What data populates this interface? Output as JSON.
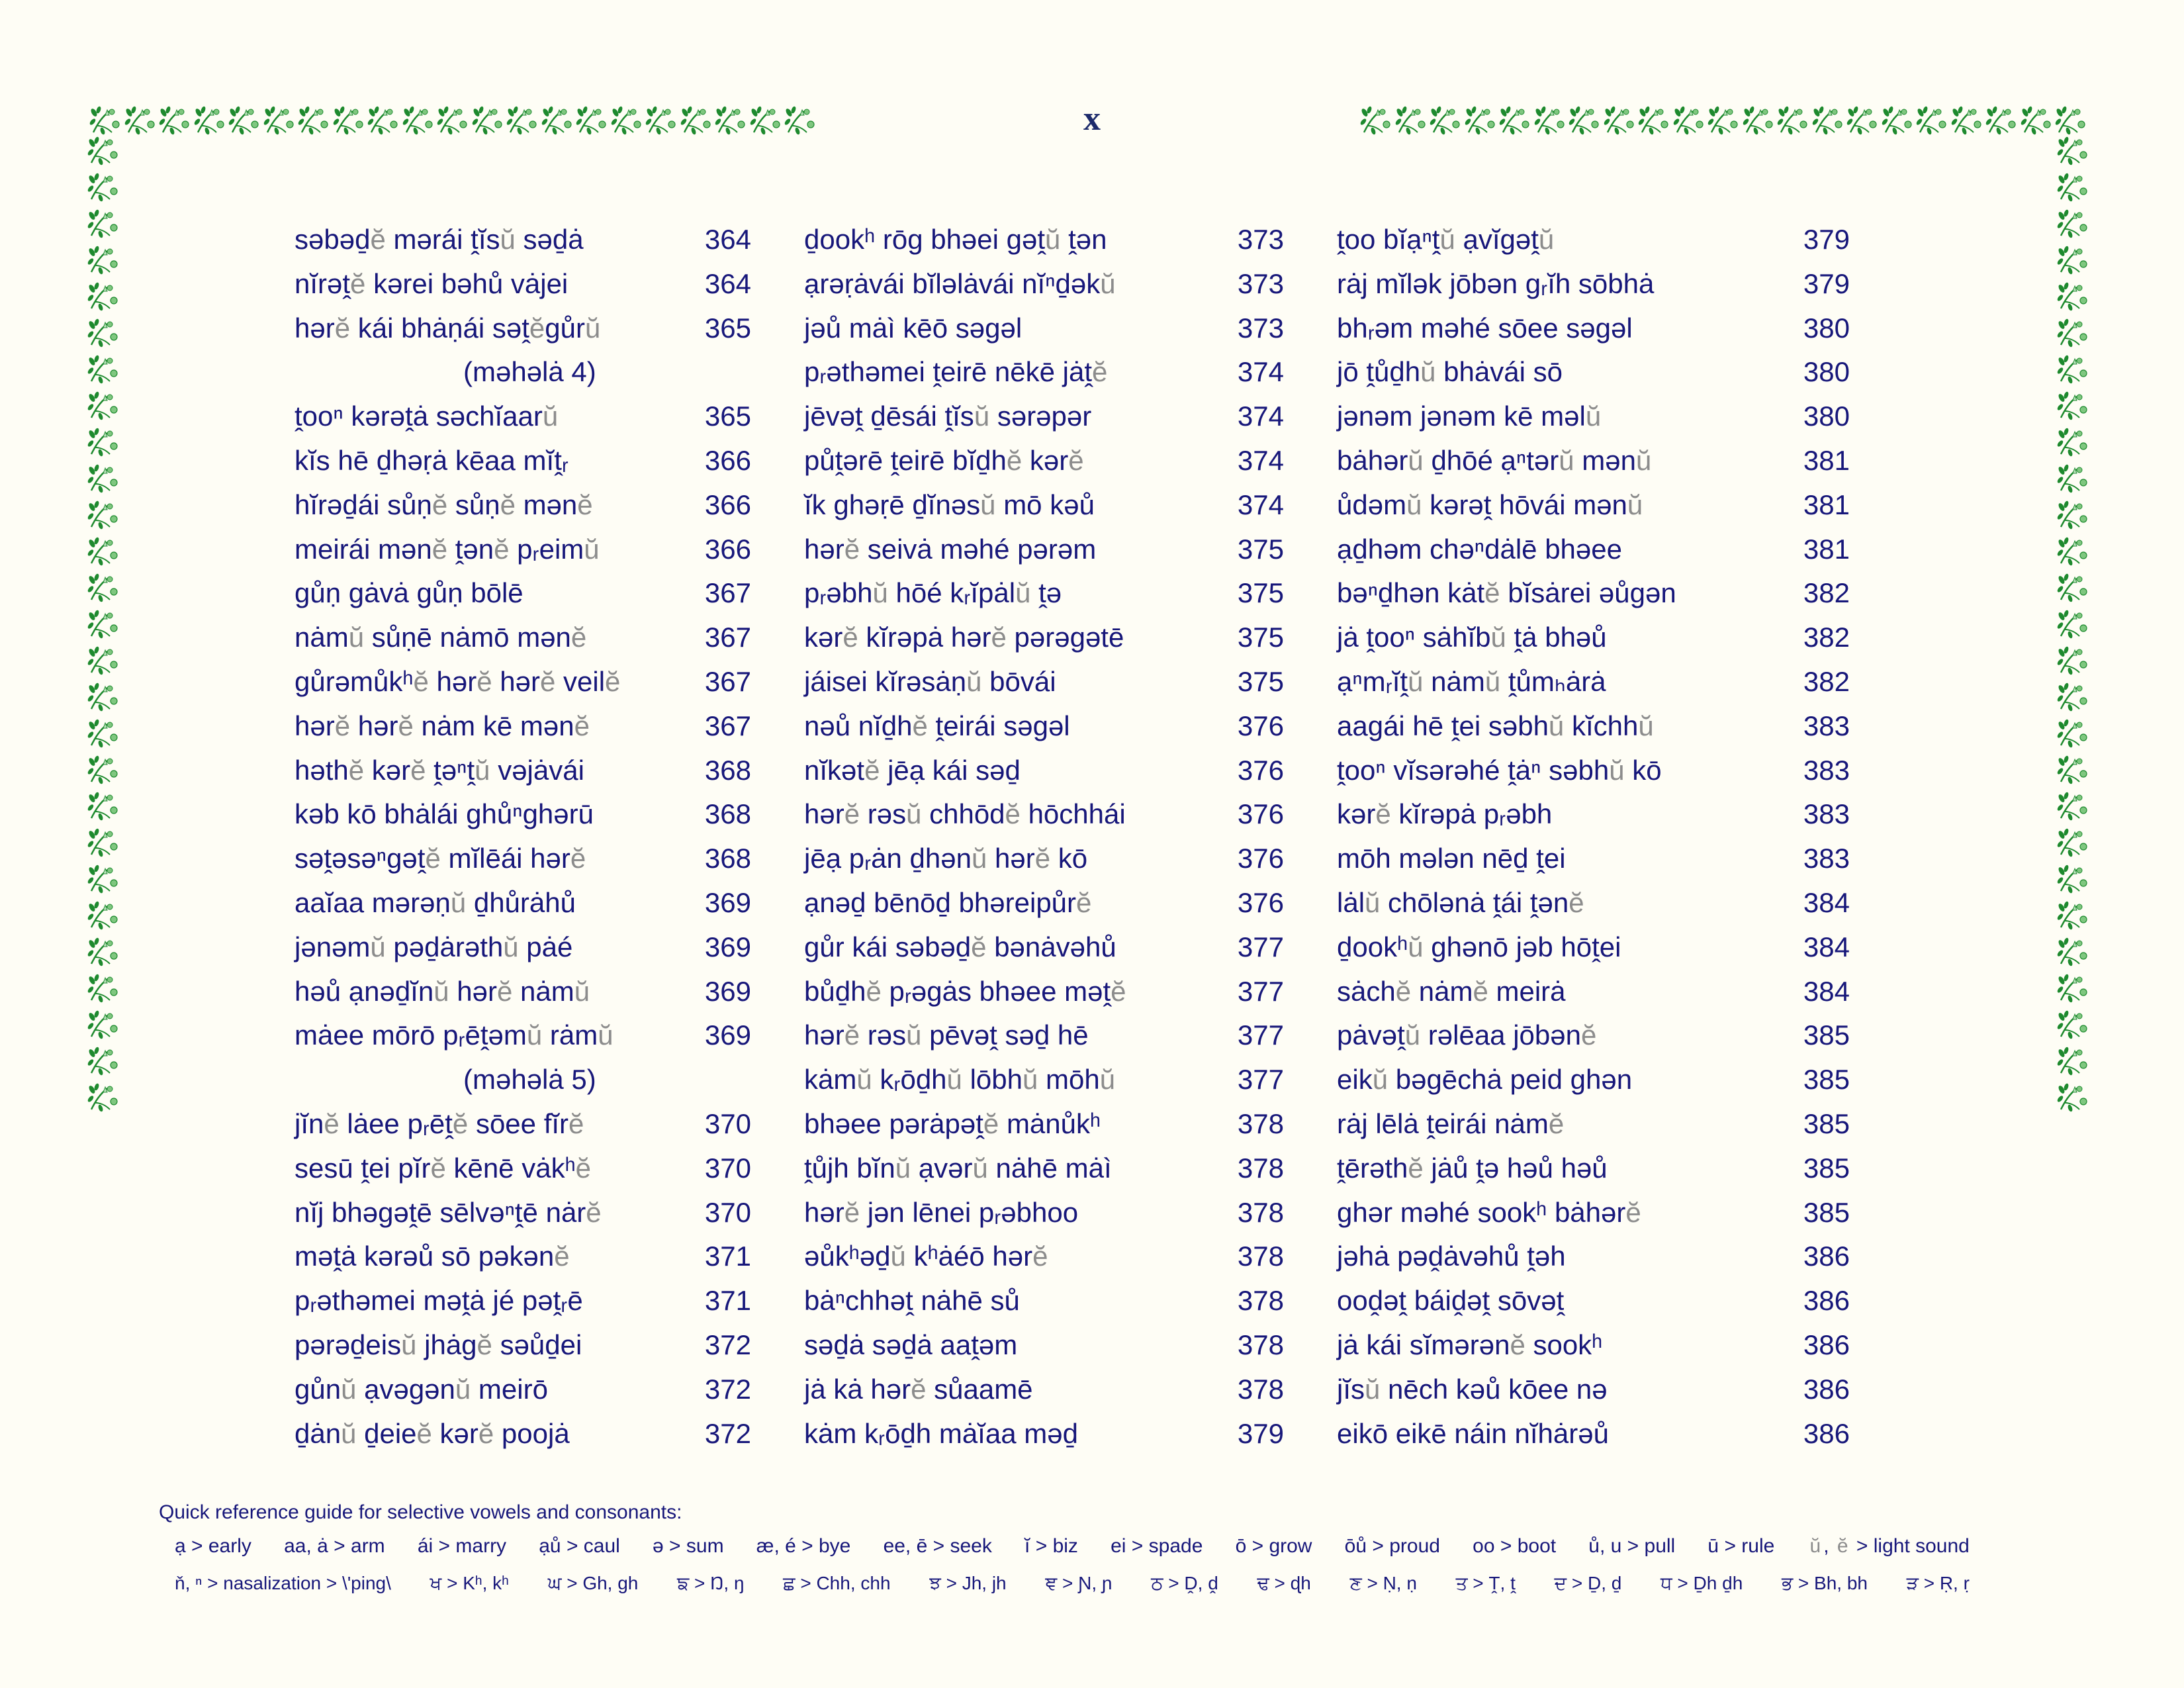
{
  "page_number": "x",
  "border": {
    "motif": "green-floral-vine-icon",
    "color": "#1e8a2e"
  },
  "colors": {
    "text": "#17177a",
    "light_sound": "#8c8c8c",
    "background": "#fefdf5"
  },
  "columns": [
    [
      {
        "text": "səbəḏĕ mərái ṱĭsŭ səḏȧ",
        "page": "364"
      },
      {
        "text": "nĭrəṱĕ kərei bəhů vȧjei",
        "page": "364"
      },
      {
        "text": "hərĕ kái bhȧṇái səṱĕgůrŭ",
        "page": "365"
      },
      {
        "text": "(məhəlȧ 4)",
        "page": "",
        "sub": true
      },
      {
        "text": "ṱooⁿ kərəṱȧ səchĭaarŭ",
        "page": "365"
      },
      {
        "text": "kĭs hē ḏhəṛȧ kēaa mĭṱᵣ",
        "page": "366"
      },
      {
        "text": "hĭrəḏái sůṇĕ sůṇĕ mənĕ",
        "page": "366"
      },
      {
        "text": "meirái mənĕ ṱənĕ pᵣeimŭ",
        "page": "366"
      },
      {
        "text": "gůṇ gȧvȧ gůṇ bōlē",
        "page": "367"
      },
      {
        "text": "nȧmŭ sůṇē nȧmō mənĕ",
        "page": "367"
      },
      {
        "text": "gůrəmůkʰĕ hərĕ hərĕ veilĕ",
        "page": "367"
      },
      {
        "text": "hərĕ hərĕ nȧm kē mənĕ",
        "page": "367"
      },
      {
        "text": "həthĕ kərĕ ṱəⁿṱŭ vəjȧvái",
        "page": "368"
      },
      {
        "text": "kəb kō bhȧlái ghůⁿghərū",
        "page": "368"
      },
      {
        "text": "səṱəsəⁿgəṱĕ mĭlēái hərĕ",
        "page": "368"
      },
      {
        "text": "aaĭaa mərəṇŭ ḏhůrȧhů",
        "page": "369"
      },
      {
        "text": "jənəmŭ pəḏȧrəthŭ pȧé",
        "page": "369"
      },
      {
        "text": "həů ạnəḏĭnŭ hərĕ nȧmŭ",
        "page": "369"
      },
      {
        "text": "mȧee mōrō pᵣēṱəmŭ rȧmŭ",
        "page": "369"
      },
      {
        "text": "(məhəlȧ 5)",
        "page": "",
        "sub": true
      },
      {
        "text": "jĭnĕ lȧee pᵣēṱĕ sōee fĭrĕ",
        "page": "370"
      },
      {
        "text": "sesū ṱei pĭrĕ kēnē vȧkʰĕ",
        "page": "370"
      },
      {
        "text": "nĭj bhəgəṱē sēlvəⁿṱē nȧrĕ",
        "page": "370"
      },
      {
        "text": "məṱȧ kərəů sō pəkənĕ",
        "page": "371"
      },
      {
        "text": "pᵣəthəmei məṱȧ jé pəṱᵣē",
        "page": "371"
      },
      {
        "text": "pərəḏeisŭ jhȧgĕ səůḏei",
        "page": "372"
      },
      {
        "text": "gůnŭ ạvəgənŭ meirō",
        "page": "372"
      },
      {
        "text": "ḏȧnŭ ḏeieĕ kərĕ poojȧ",
        "page": "372"
      }
    ],
    [
      {
        "text": "ḏookʰ rōg bhəei gəṱŭ ṱən",
        "page": "373"
      },
      {
        "text": "ạrəṛȧvái bĭləlȧvái nĭⁿḏəkŭ",
        "page": "373"
      },
      {
        "text": "jəů mȧì kēō səgəl",
        "page": "373"
      },
      {
        "text": "pᵣəthəmei ṱeirē nēkē jȧṱĕ",
        "page": "374"
      },
      {
        "text": "jēvəṱ ḏēsái ṱĭsŭ sərəpər",
        "page": "374"
      },
      {
        "text": "půṱərē ṱeirē bĭḏhĕ kərĕ",
        "page": "374"
      },
      {
        "text": "ĭk ghəṛē ḏĭnəsŭ mō kəů",
        "page": "374"
      },
      {
        "text": "hərĕ seivȧ məhé pərəm",
        "page": "375"
      },
      {
        "text": "pᵣəbhŭ hōé kᵣĭpȧlŭ ṱə",
        "page": "375"
      },
      {
        "text": "kərĕ kĭrəpȧ hərĕ pərəgətē",
        "page": "375"
      },
      {
        "text": "jáisei kĭrəsȧṇŭ bōvái",
        "page": "375"
      },
      {
        "text": "nəů nĭḏhĕ ṱeirái səgəl",
        "page": "376"
      },
      {
        "text": "nĭkətĕ jēạ kái səḏ",
        "page": "376"
      },
      {
        "text": "hərĕ rəsŭ chhōdĕ hōchhái",
        "page": "376"
      },
      {
        "text": "jēạ pᵣȧn ḏhənŭ hərĕ kō",
        "page": "376"
      },
      {
        "text": "ạnəḏ bēnōḏ bhəreipůrĕ",
        "page": "376"
      },
      {
        "text": "gůr kái səbəḏĕ bənȧvəhů",
        "page": "377"
      },
      {
        "text": "bůḏhĕ pᵣəgȧs bhəee məṱĕ",
        "page": "377"
      },
      {
        "text": "hərĕ rəsŭ pēvəṱ səḏ hē",
        "page": "377"
      },
      {
        "text": "kȧmŭ kᵣōḏhŭ lōbhŭ mōhŭ",
        "page": "377"
      },
      {
        "text": "bhəee pərȧpəṱĕ mȧnůkʰ",
        "page": "378"
      },
      {
        "text": "ṱůjh bĭnŭ ạvərŭ nȧhē mȧì",
        "page": "378"
      },
      {
        "text": "hərĕ jən lēnei pᵣəbhoo",
        "page": "378"
      },
      {
        "text": "əůkʰəḏŭ kʰȧéō hərĕ",
        "page": "378"
      },
      {
        "text": "bȧⁿchhəṱ nȧhē sů",
        "page": "378"
      },
      {
        "text": "səḏȧ səḏȧ aaṱəm",
        "page": "378"
      },
      {
        "text": "jȧ kȧ hərĕ sůaamē",
        "page": "378"
      },
      {
        "text": "kȧm kᵣōḏh mȧĭaa məḏ",
        "page": "379"
      }
    ],
    [
      {
        "text": "ṱoo bĭạⁿṱŭ ạvĭgəṱŭ",
        "page": "379"
      },
      {
        "text": "rȧj mĭlək jōbən gᵣĭh sōbhȧ",
        "page": "379"
      },
      {
        "text": "bhᵣəm məhé sōee səgəl",
        "page": "380"
      },
      {
        "text": "jō ṱůḏhŭ bhȧvái sō",
        "page": "380"
      },
      {
        "text": "jənəm jənəm kē məlŭ",
        "page": "380"
      },
      {
        "text": "bȧhərŭ ḏhōé ạⁿtərŭ mənŭ",
        "page": "381"
      },
      {
        "text": "ůdəmŭ kərəṱ hōvái mənŭ",
        "page": "381"
      },
      {
        "text": "ạḏhəm chəⁿdȧlē bhəee",
        "page": "381"
      },
      {
        "text": "bəⁿḏhən kȧtĕ bĭsȧrei əůgən",
        "page": "382"
      },
      {
        "text": "jȧ ṱooⁿ sȧhĭbŭ ṱȧ bhəů",
        "page": "382"
      },
      {
        "text": "ạⁿmᵣĭṱŭ nȧmŭ ṱůmₕȧrȧ",
        "page": "382"
      },
      {
        "text": "aagái hē ṱei səbhŭ kĭchhŭ",
        "page": "383"
      },
      {
        "text": "ṱooⁿ vĭsərəhé ṱȧⁿ səbhŭ kō",
        "page": "383"
      },
      {
        "text": "kərĕ kĭrəpȧ pᵣəbh",
        "page": "383"
      },
      {
        "text": "mōh mələn nēḏ ṱei",
        "page": "383"
      },
      {
        "text": "lȧlŭ chōlənȧ ṱái ṱənĕ",
        "page": "384"
      },
      {
        "text": "ḏookʰŭ ghənō jəb hōṱei",
        "page": "384"
      },
      {
        "text": "sȧchĕ nȧmĕ meirȧ",
        "page": "384"
      },
      {
        "text": "pȧvəṱŭ rəlēaa jōbənĕ",
        "page": "385"
      },
      {
        "text": "eikŭ bəgēchȧ peid ghən",
        "page": "385"
      },
      {
        "text": "rȧj lēlȧ ṱeirái nȧmĕ",
        "page": "385"
      },
      {
        "text": "ṱērəthĕ jȧů ṱə həů həů",
        "page": "385"
      },
      {
        "text": "ghər məhé sookʰ bȧhərĕ",
        "page": "385"
      },
      {
        "text": "jəhȧ pəḓȧvəhů ṱəh",
        "page": "386"
      },
      {
        "text": "ooḓəṱ báiḓəṱ sōvəṱ",
        "page": "386"
      },
      {
        "text": "jȧ kái sĭmərənĕ sookʰ",
        "page": "386"
      },
      {
        "text": "jĭsŭ nēch kəů kōee nə",
        "page": "386"
      },
      {
        "text": "eikō eikē náin nĭhȧrəů",
        "page": "386"
      }
    ]
  ],
  "reference": {
    "title": "Quick reference guide for selective vowels and consonants:",
    "vowels": [
      "ạ > early",
      "aa, ȧ > arm",
      "ái > marry",
      "ạů > caul",
      "ə > sum",
      "æ, é > bye",
      "ee, ē > seek",
      "ĭ > biz",
      "ei > spade",
      "ō > grow",
      "ōů > proud",
      "oo > boot",
      "ů, u > pull",
      "ū > rule",
      "ŭ, ĕ > light sound"
    ],
    "consonants": [
      "ň, ⁿ > nasalization > \\'ping\\",
      "ਖ > Kʰ, kʰ",
      "ਘ > Gh, gh",
      "ਙ > Ŋ, ŋ",
      "ਛ > Chh, chh",
      "ਝ > Jh, jh",
      "ਞ > Ɲ, ɲ",
      "ਠ > Ḓ, ḓ",
      "ਢ > ɖh",
      "ਣ > Ṇ, ṇ",
      "ਤ > Ṱ, ṱ",
      "ਦ > Ḏ, ḏ",
      "ਧ > Ḏh ḏh",
      "ਭ > Bh, bh",
      "ੜ > Ṛ, ṛ"
    ]
  }
}
